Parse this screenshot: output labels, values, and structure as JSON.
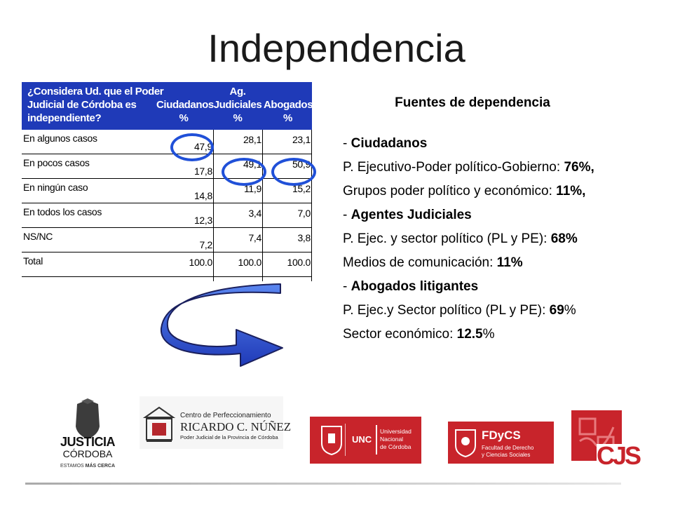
{
  "title": "Independencia",
  "table": {
    "question_lines": [
      "¿Considera Ud. que  el Poder",
      "Judicial de Córdoba es",
      "independiente?"
    ],
    "columns": [
      {
        "lines": [
          "",
          "Ciudadanos",
          "%"
        ]
      },
      {
        "lines": [
          "Ag.",
          "Judiciales",
          "%"
        ]
      },
      {
        "lines": [
          "",
          "Abogados",
          "%"
        ]
      }
    ],
    "rows": [
      {
        "label": "En algunos casos",
        "values": [
          "47,9",
          "28,1",
          "23,1"
        ]
      },
      {
        "label": "En pocos casos",
        "values": [
          "17,8",
          "49,1",
          "50,9"
        ]
      },
      {
        "label": "En ningún caso",
        "values": [
          "14,8",
          "11,9",
          "15,2"
        ]
      },
      {
        "label": "En todos los casos",
        "values": [
          "12,3",
          "3,4",
          "7,0"
        ]
      },
      {
        "label": "NS/NC",
        "values": [
          "7,2",
          "7,4",
          "3,8"
        ]
      },
      {
        "label": "Total",
        "values": [
          "100.0",
          "100.0",
          "100.0"
        ]
      }
    ],
    "header_color": "#1f3ab8",
    "highlight_color": "#2050d8"
  },
  "sources": {
    "heading": "Fuentes de dependencia",
    "dash": "- ",
    "cat1": "Ciudadanos",
    "l1_text": "P. Ejecutivo-Poder político-Gobierno: ",
    "l1_val": "76%,",
    "l2_text": "Grupos poder político y económico: ",
    "l2_val": "11%,",
    "cat2": "Agentes Judiciales",
    "l3_text": "P. Ejec. y sector político (PL y PE): ",
    "l3_val": "68%",
    "l4_text": "Medios de comunicación: ",
    "l4_val": "11%",
    "cat3": "Abogados litigantes",
    "l5_text": "P. Ejec.y Sector político (PL y PE): ",
    "l5_val": "69",
    "l5_suffix": "%",
    "l6_text": "Sector económico: ",
    "l6_val": "12.5",
    "l6_suffix": "%"
  },
  "logos": {
    "justicia": {
      "line1": "JUSTICIA",
      "line2": "CÓRDOBA",
      "tag_a": "ESTAMOS ",
      "tag_b": "MÁS CERCA"
    },
    "centro": {
      "line1": "Centro de Perfeccionamiento",
      "line2": "RICARDO C. NÚÑEZ",
      "line3": "Poder Judicial de la Provincia de Córdoba"
    },
    "unc": {
      "abbr": "UNC",
      "line1": "Universidad",
      "line2": "Nacional",
      "line3": "de Córdoba",
      "color": "#c8242b"
    },
    "fdycs": {
      "abbr": "FDyCS",
      "line1": "Facultad de Derecho",
      "line2": "y Ciencias Sociales",
      "color": "#c8242b"
    },
    "cjs": {
      "abbr": "CJS",
      "color": "#c8242b"
    }
  }
}
